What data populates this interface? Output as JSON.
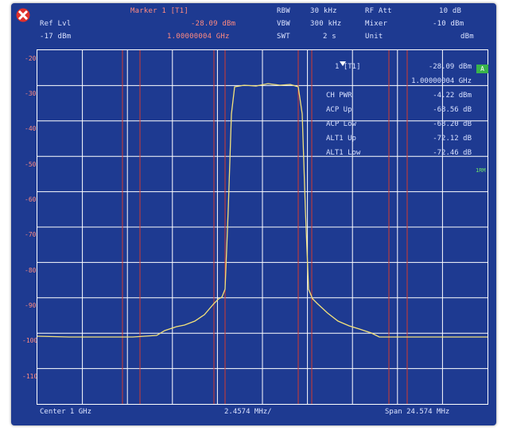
{
  "header": {
    "row1": {
      "marker_label": "Marker 1 [T1]",
      "rbw_label": "RBW",
      "rbw_value": "30 kHz",
      "rf_att_label": "RF Att",
      "rf_att_value": "10 dB"
    },
    "row2": {
      "ref_lvl_label": "Ref Lvl",
      "marker_level": "-28.09 dBm",
      "vbw_label": "VBW",
      "vbw_value": "300 kHz",
      "mixer_label": "Mixer",
      "mixer_value": "-10 dBm"
    },
    "row3": {
      "ref_lvl_value": "-17 dBm",
      "marker_freq": "1.00000004 GHz",
      "swt_label": "SWT",
      "swt_value": "2 s",
      "unit_label": "Unit",
      "unit_value": "dBm"
    }
  },
  "y_axis": {
    "ticks": [
      "-20",
      "-30",
      "-40",
      "-50",
      "-60",
      "-70",
      "-80",
      "-90",
      "-100",
      "-110"
    ]
  },
  "marker_panel": {
    "title": "1 [T1]",
    "level": "-28.09 dBm",
    "freq": "1.00000004 GHz",
    "rows": [
      {
        "label": "CH PWR",
        "value": "-4.22 dBm"
      },
      {
        "label": "ACP Up",
        "value": "-68.56 dB"
      },
      {
        "label": "ACP Low",
        "value": "-68.20 dB"
      },
      {
        "label": "ALT1 Up",
        "value": "-72.12 dB"
      },
      {
        "label": "ALT1 Low",
        "value": "-72.46 dB"
      }
    ]
  },
  "side": {
    "trace_badge": "A",
    "trace_mode": "1RM"
  },
  "footer": {
    "center": "Center 1 GHz",
    "div": "2.4574 MHz/",
    "span": "Span 24.574 MHz"
  },
  "colors": {
    "screen": "#1e3a91",
    "grid": "#ffffff",
    "trace": "#f4e27a",
    "channel_lines": "#d23b2e"
  }
}
